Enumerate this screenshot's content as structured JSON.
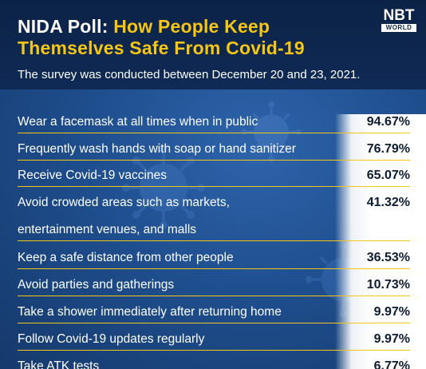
{
  "header": {
    "title_prefix": "NIDA Poll:",
    "title_line1_rest": "How People Keep",
    "title_line2": "Themselves Safe From Covid-19",
    "subtitle": "The survey was conducted between December 20 and 23, 2021.",
    "logo_main": "NBT",
    "logo_sub": "WORLD"
  },
  "colors": {
    "title_white": "#ffffff",
    "title_yellow": "#f5c518",
    "header_bg": "#0c2347",
    "body_bg": "#1f4f8f",
    "rule": "#f5c518"
  },
  "icons": [
    "coronavirus-icon"
  ],
  "chart_data": {
    "type": "table",
    "columns": [
      "measure",
      "percent"
    ],
    "rows": [
      {
        "label": "Wear a facemask at all times when in public",
        "value_text": "94.67%",
        "value": 94.67
      },
      {
        "label": "Frequently wash hands with soap or hand sanitizer",
        "value_text": "76.79%",
        "value": 76.79
      },
      {
        "label": "Receive Covid-19 vaccines",
        "value_text": "65.07%",
        "value": 65.07
      },
      {
        "label": "Avoid crowded areas such as markets,",
        "label_line2": "entertainment venues, and malls",
        "value_text": "41.32%",
        "value": 41.32
      },
      {
        "label": "Keep a safe distance from other people",
        "value_text": "36.53%",
        "value": 36.53
      },
      {
        "label": "Avoid parties and gatherings",
        "value_text": "10.73%",
        "value": 10.73
      },
      {
        "label": "Take a shower immediately after returning home",
        "value_text": "9.97%",
        "value": 9.97
      },
      {
        "label": "Follow Covid-19 updates regularly",
        "value_text": "9.97%",
        "value": 9.97
      },
      {
        "label": "Take ATK tests",
        "value_text": "6.77%",
        "value": 6.77
      }
    ]
  }
}
